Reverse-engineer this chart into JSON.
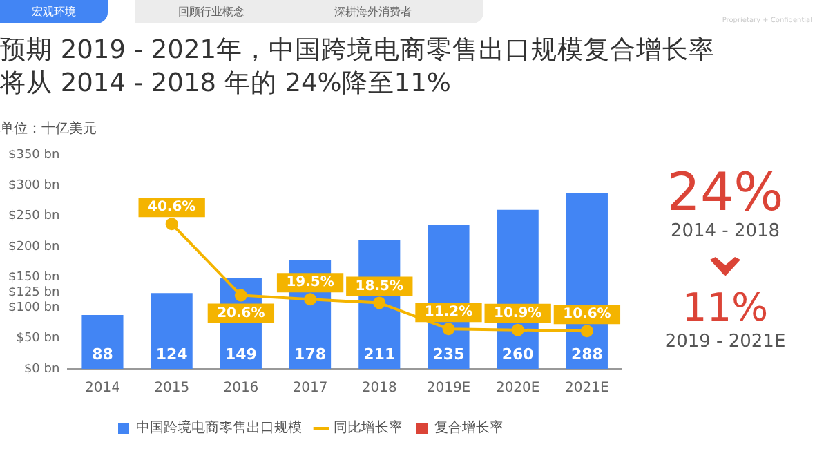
{
  "chart_data": {
    "type": "bar",
    "title": "预期 2019 - 2021年，中国跨境电商零售出口规模复合增长率将从 2014 - 2018 年的 24%降至11%",
    "ylabel": "单位：十亿美元",
    "categories": [
      "2014",
      "2015",
      "2016",
      "2017",
      "2018",
      "2019E",
      "2020E",
      "2021E"
    ],
    "series": [
      {
        "name": "中国跨境电商零售出口规模",
        "color": "#4285f4",
        "values": [
          88,
          124,
          149,
          178,
          211,
          235,
          260,
          288
        ],
        "value_labels": [
          "88",
          "124",
          "149",
          "178",
          "211",
          "235",
          "260",
          "288"
        ]
      },
      {
        "name": "同比增长率",
        "type": "line",
        "axis": "y2",
        "color": "#f4b400",
        "values": [
          null,
          40.6,
          20.6,
          19.5,
          18.5,
          11.2,
          10.9,
          10.6
        ],
        "value_labels": [
          null,
          "40.6%",
          "20.6%",
          "19.5%",
          "18.5%",
          "11.2%",
          "10.9%",
          "10.6%"
        ]
      },
      {
        "name": "复合增长率",
        "color": "#db4437",
        "values": [
          null,
          null,
          null,
          null,
          null,
          null,
          null,
          null
        ]
      }
    ],
    "ylim": [
      0,
      350
    ],
    "yticks": [
      {
        "value": 0,
        "label": "$0 bn"
      },
      {
        "value": 50,
        "label": "$50 bn"
      },
      {
        "value": 100,
        "label": "$100 bn"
      },
      {
        "value": 125,
        "label": "$125 bn"
      },
      {
        "value": 150,
        "label": "$150 bn"
      },
      {
        "value": 200,
        "label": "$200 bn"
      },
      {
        "value": 250,
        "label": "$250 bn"
      },
      {
        "value": 300,
        "label": "$300 bn"
      },
      {
        "value": 350,
        "label": "$350 bn"
      }
    ],
    "grid": false,
    "legend": "bottom",
    "marker": "circle",
    "annotations": [
      "宏观环境",
      "回顾行业概念",
      "深耕海外消费者",
      "Proprietary + Confidential",
      "24%",
      "2014 - 2018",
      "11%",
      "2019 - 2021E"
    ]
  }
}
